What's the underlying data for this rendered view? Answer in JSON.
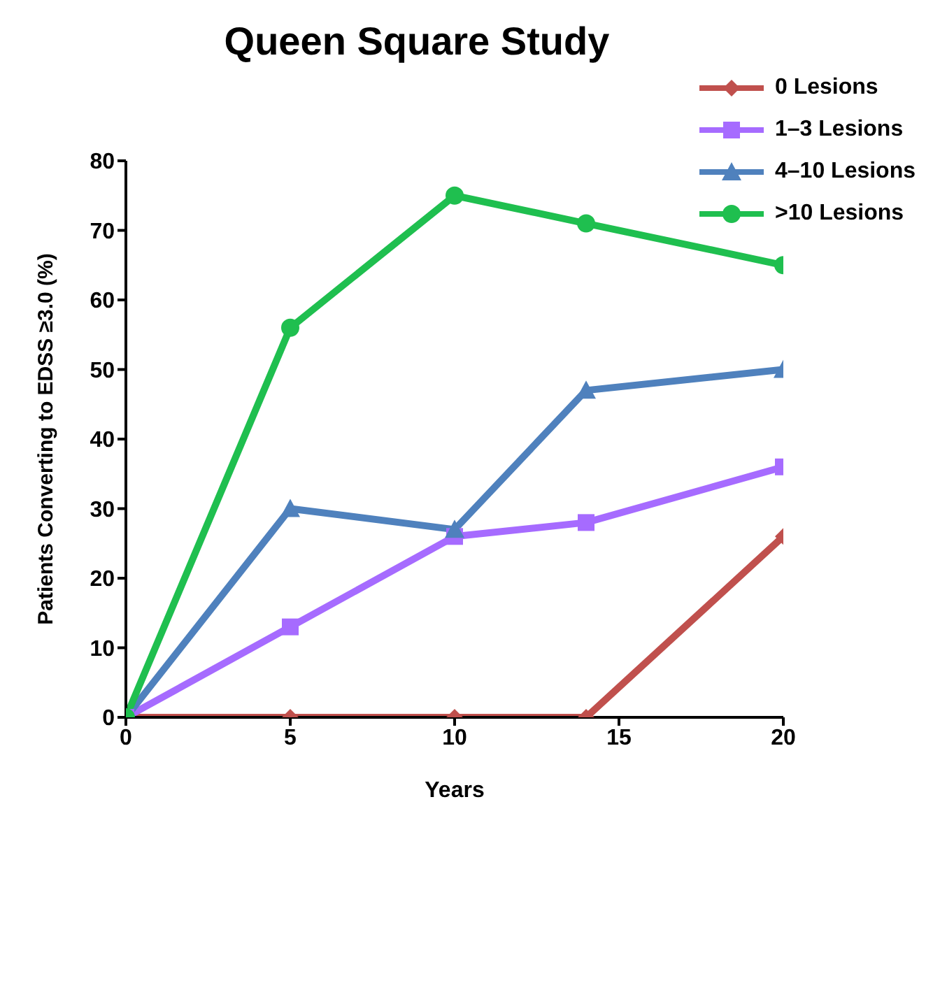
{
  "chart_data": {
    "type": "line",
    "title": "Queen Square Study",
    "xlabel": "Years",
    "ylabel": "Patients Converting to EDSS ≥3.0 (%)",
    "x": [
      0,
      5,
      10,
      14,
      20
    ],
    "series": [
      {
        "name": "0 Lesions",
        "color": "#c0504d",
        "marker": "diamond",
        "values": [
          0,
          0,
          0,
          0,
          26
        ]
      },
      {
        "name": "1–3 Lesions",
        "color": "#a66bff",
        "marker": "square",
        "values": [
          0,
          13,
          26,
          28,
          36
        ]
      },
      {
        "name": "4–10 Lesions",
        "color": "#4f81bd",
        "marker": "triangle",
        "values": [
          0,
          30,
          27,
          47,
          50
        ]
      },
      {
        "name": ">10 Lesions",
        "color": "#1fbf4f",
        "marker": "circle",
        "values": [
          0,
          56,
          75,
          71,
          65
        ]
      }
    ],
    "xlim": [
      0,
      20
    ],
    "xticks": [
      0,
      5,
      10,
      15,
      20
    ],
    "ylim": [
      0,
      80
    ],
    "yticks": [
      0,
      10,
      20,
      30,
      40,
      50,
      60,
      70,
      80
    ],
    "grid": false,
    "legend": "top right",
    "line_style": "solid"
  }
}
